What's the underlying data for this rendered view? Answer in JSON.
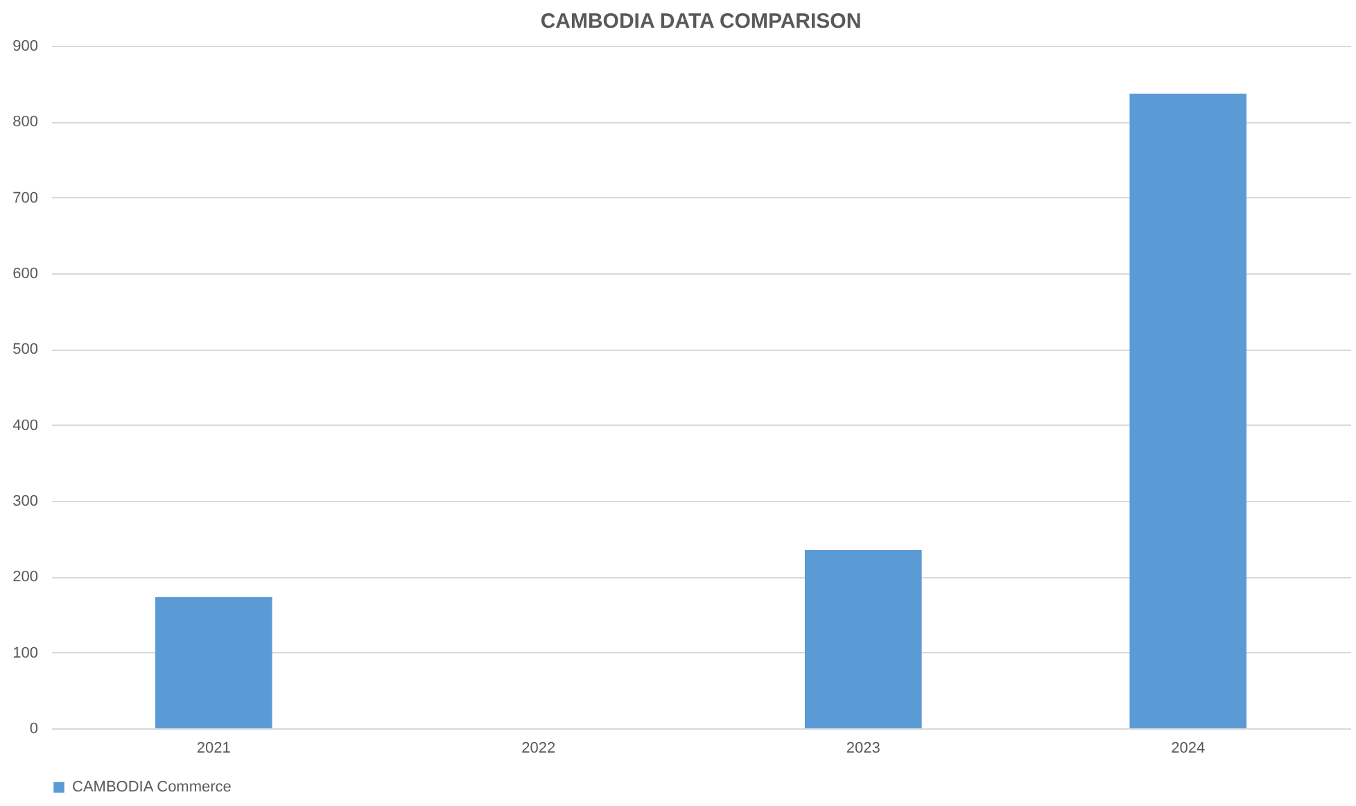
{
  "chart_data": {
    "type": "bar",
    "title": "CAMBODIA DATA COMPARISON",
    "categories": [
      "2021",
      "2022",
      "2023",
      "2024"
    ],
    "series": [
      {
        "name": "CAMBODIA Commerce",
        "color": "#5b9bd5",
        "values": [
          173,
          null,
          235,
          837
        ]
      }
    ],
    "ylim": [
      0,
      900
    ],
    "yticks": [
      0,
      100,
      200,
      300,
      400,
      500,
      600,
      700,
      800,
      900
    ],
    "grid": "y",
    "legend": "bottom"
  }
}
